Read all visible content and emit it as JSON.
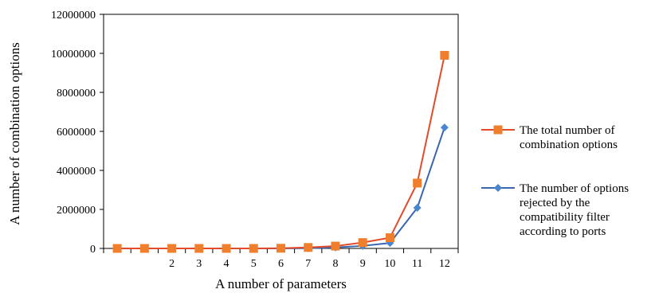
{
  "chart_data": {
    "type": "line",
    "title": "",
    "xlabel": "A number of parameters",
    "ylabel": "A number of combination options",
    "x_tick_labels": [
      "",
      "",
      "2",
      "3",
      "4",
      "5",
      "6",
      "7",
      "8",
      "9",
      "10",
      "11",
      "12"
    ],
    "y_ticks": [
      0,
      2000000,
      4000000,
      6000000,
      8000000,
      10000000,
      12000000
    ],
    "y_tick_labels": [
      "0",
      "2000000",
      "4000000",
      "6000000",
      "8000000",
      "10000000",
      "12000000"
    ],
    "ylim": [
      0,
      12000000
    ],
    "grid": false,
    "legend_position": "right",
    "series": [
      {
        "name": "The total number of combination options",
        "legend_lines": [
          "The total number of",
          "combination options"
        ],
        "color": "#e34a2a",
        "marker_color": "#f07f2d",
        "marker": "square",
        "values": [
          0,
          0,
          0,
          0,
          0,
          0,
          10000,
          50000,
          120000,
          300000,
          550000,
          3350000,
          9900000
        ]
      },
      {
        "name": "The number of options rejected by the compatibility filter according to ports",
        "legend_lines": [
          "The number of options",
          "rejected by the",
          "compatibility filter",
          "according to ports"
        ],
        "color": "#3a66b0",
        "marker_color": "#4a86d0",
        "marker": "diamond",
        "values": [
          0,
          0,
          0,
          0,
          0,
          0,
          0,
          10000,
          50000,
          130000,
          280000,
          2080000,
          6200000
        ]
      }
    ]
  }
}
